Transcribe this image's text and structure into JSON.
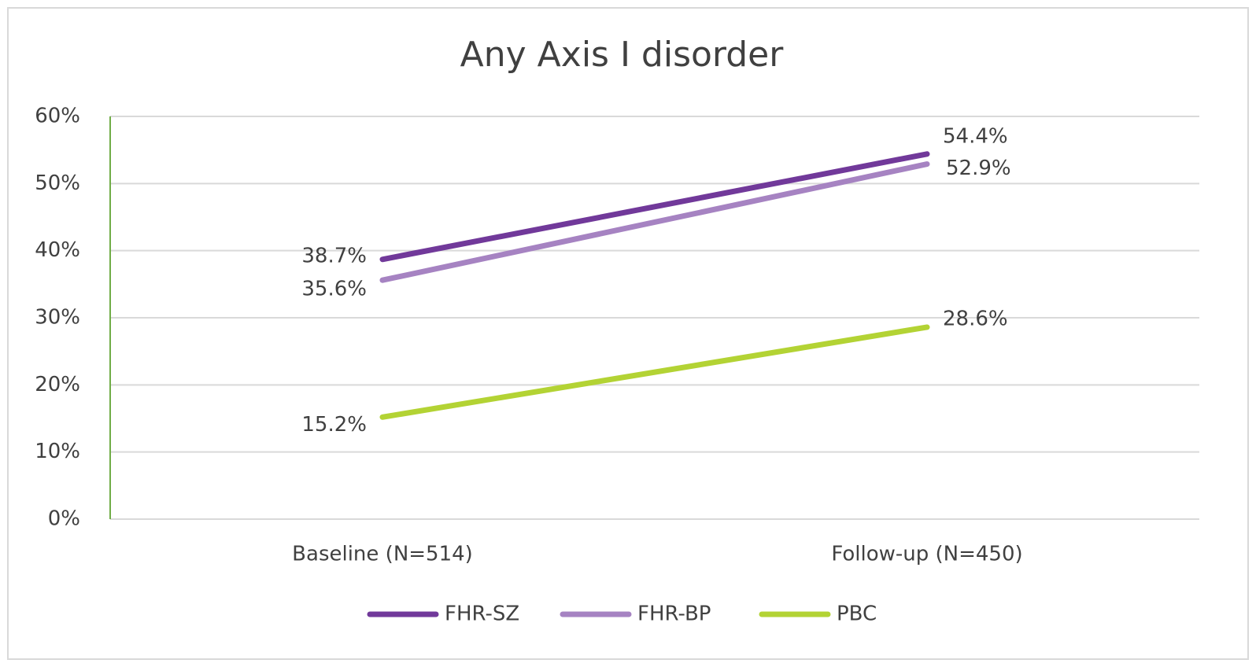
{
  "chart_data": {
    "type": "line",
    "title": "Any Axis I disorder",
    "categories": [
      "Baseline (N=514)",
      "Follow-up (N=450)"
    ],
    "series": [
      {
        "name": "FHR-SZ",
        "color": "#71399a",
        "values": [
          38.7,
          54.4
        ],
        "value_labels": [
          "38.7%",
          "54.4%"
        ]
      },
      {
        "name": "FHR-BP",
        "color": "#a683c2",
        "values": [
          35.6,
          52.9
        ],
        "value_labels": [
          "35.6%",
          "52.9%"
        ]
      },
      {
        "name": "PBC",
        "color": "#b3d334",
        "values": [
          15.2,
          28.6
        ],
        "value_labels": [
          "15.2%",
          "28.6%"
        ]
      }
    ],
    "ylim": [
      0,
      60
    ],
    "yticks": [
      {
        "value": 0,
        "label": "0%"
      },
      {
        "value": 10,
        "label": "10%"
      },
      {
        "value": 20,
        "label": "20%"
      },
      {
        "value": 30,
        "label": "30%"
      },
      {
        "value": 40,
        "label": "40%"
      },
      {
        "value": 50,
        "label": "50%"
      },
      {
        "value": 60,
        "label": "60%"
      }
    ],
    "grid": true,
    "legend": "bottom"
  }
}
